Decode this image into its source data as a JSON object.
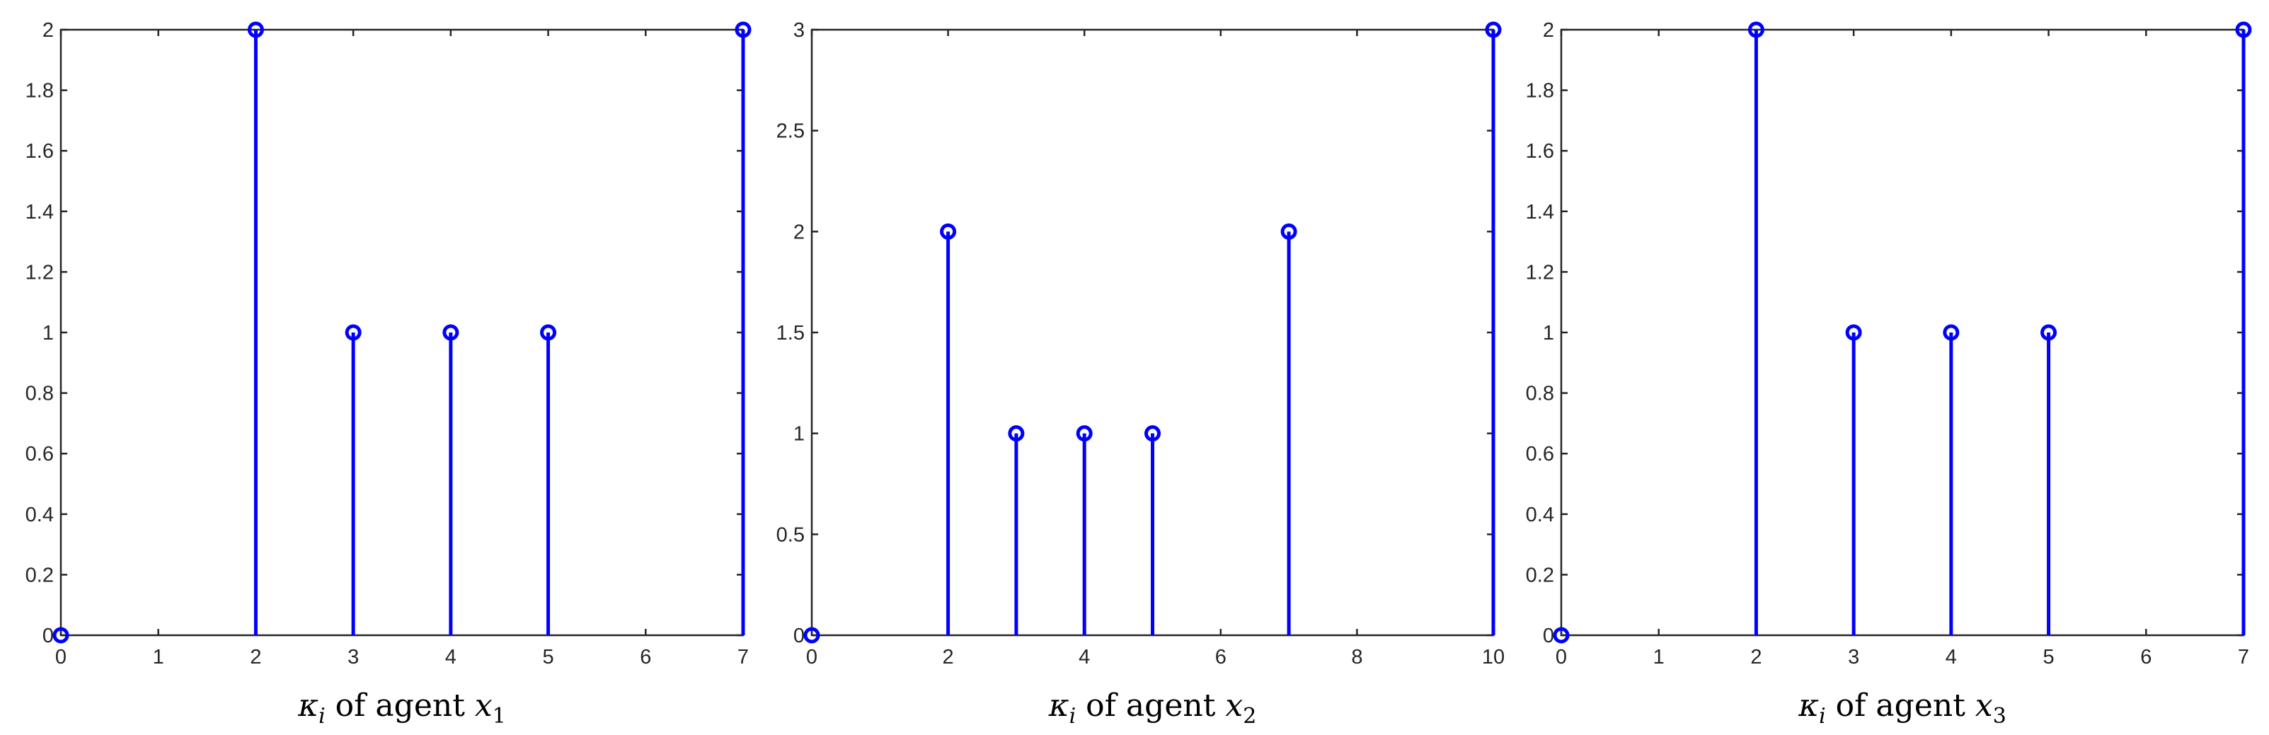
{
  "chart_data": [
    {
      "type": "stem",
      "x": [
        0,
        2,
        3,
        4,
        5,
        7
      ],
      "y": [
        0,
        2,
        1,
        1,
        1,
        2
      ],
      "xlim": [
        0,
        7
      ],
      "ylim": [
        0,
        2
      ],
      "xticks": [
        "0",
        "1",
        "2",
        "3",
        "4",
        "5",
        "6",
        "7"
      ],
      "yticks": [
        "0",
        "0.2",
        "0.4",
        "0.6",
        "0.8",
        "1",
        "1.2",
        "1.4",
        "1.6",
        "1.8",
        "2"
      ],
      "xlabel": {
        "symbol": "κ",
        "sub": "i",
        "text": " of agent ",
        "var": "x",
        "var_sub": "1"
      },
      "ylabel": "",
      "title": "",
      "grid": false,
      "color": "#0000ff",
      "marker": "circle"
    },
    {
      "type": "stem",
      "x": [
        0,
        2,
        3,
        4,
        5,
        7,
        10
      ],
      "y": [
        0,
        2,
        1,
        1,
        1,
        2,
        3
      ],
      "xlim": [
        0,
        10
      ],
      "ylim": [
        0,
        3
      ],
      "xticks": [
        "0",
        "2",
        "4",
        "6",
        "8",
        "10"
      ],
      "yticks": [
        "0",
        "0.5",
        "1",
        "1.5",
        "2",
        "2.5",
        "3"
      ],
      "xlabel": {
        "symbol": "κ",
        "sub": "i",
        "text": " of agent ",
        "var": "x",
        "var_sub": "2"
      },
      "ylabel": "",
      "title": "",
      "grid": false,
      "color": "#0000ff",
      "marker": "circle"
    },
    {
      "type": "stem",
      "x": [
        0,
        2,
        3,
        4,
        5,
        7
      ],
      "y": [
        0,
        2,
        1,
        1,
        1,
        2
      ],
      "xlim": [
        0,
        7
      ],
      "ylim": [
        0,
        2
      ],
      "xticks": [
        "0",
        "1",
        "2",
        "3",
        "4",
        "5",
        "6",
        "7"
      ],
      "yticks": [
        "0",
        "0.2",
        "0.4",
        "0.6",
        "0.8",
        "1",
        "1.2",
        "1.4",
        "1.6",
        "1.8",
        "2"
      ],
      "xlabel": {
        "symbol": "κ",
        "sub": "i",
        "text": " of agent ",
        "var": "x",
        "var_sub": "3"
      },
      "ylabel": "",
      "title": "",
      "grid": false,
      "color": "#0000ff",
      "marker": "circle"
    }
  ]
}
